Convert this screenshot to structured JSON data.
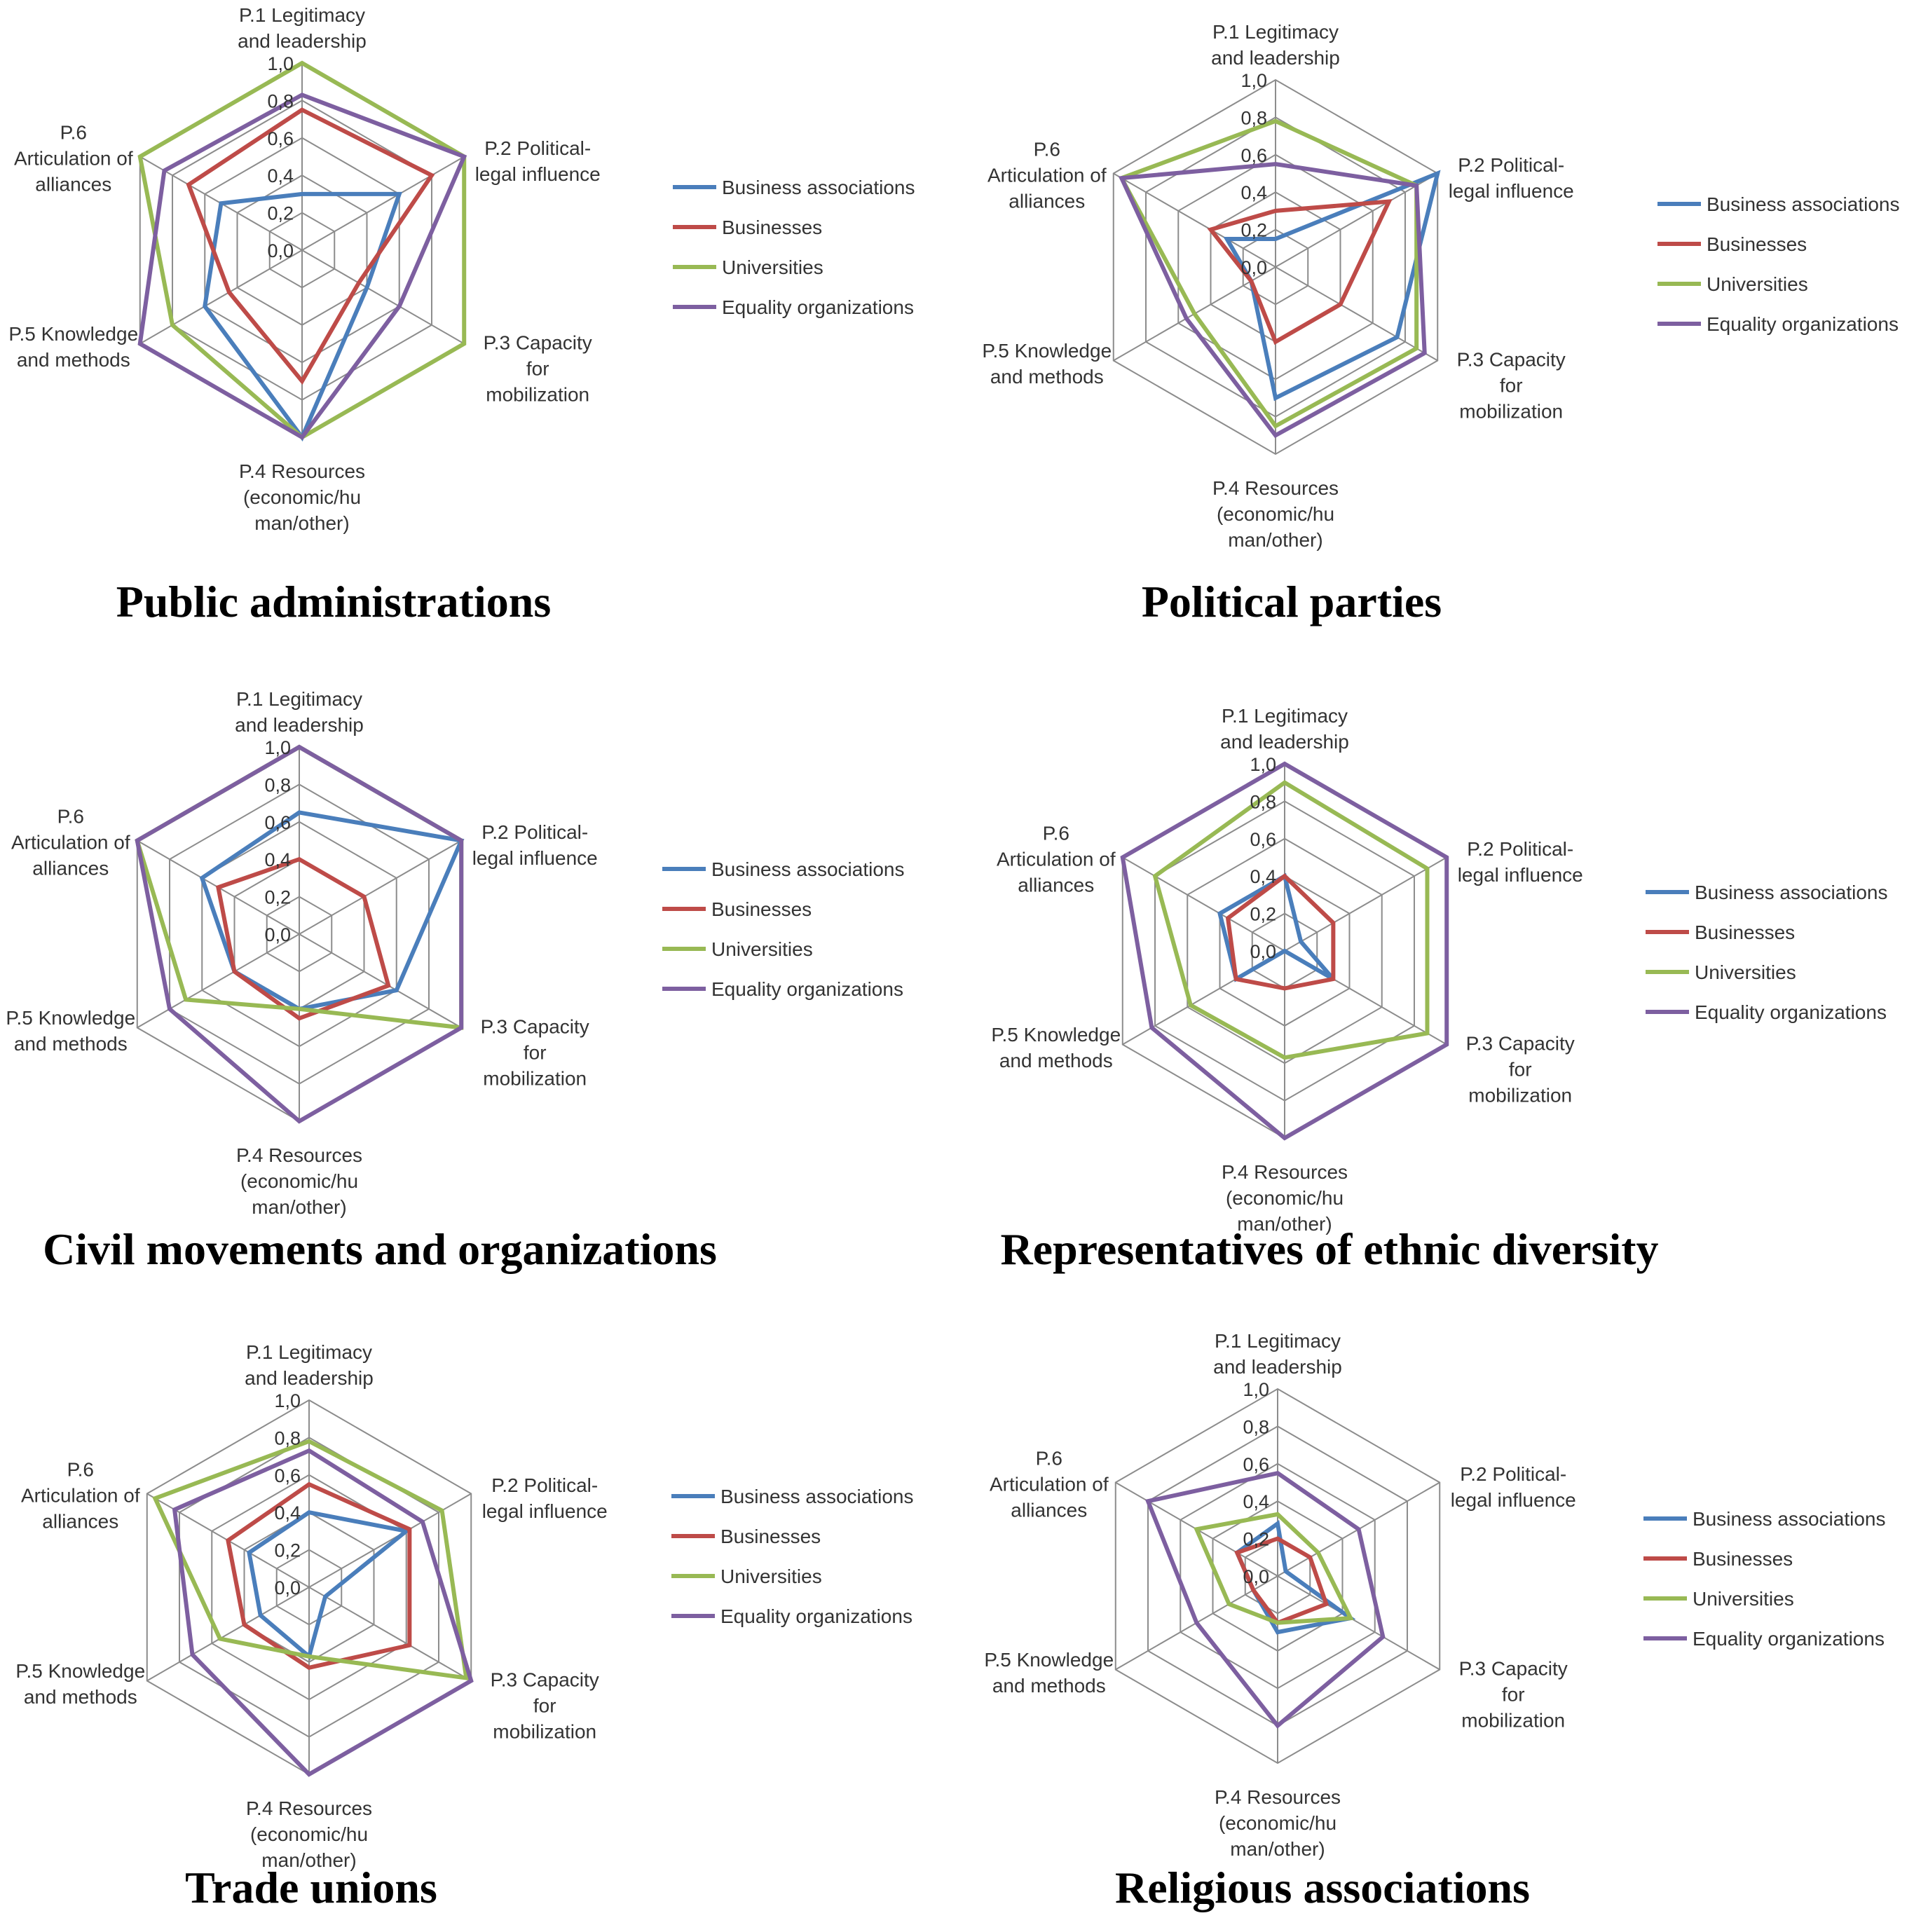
{
  "axes": [
    [
      "P.1 Legitimacy",
      "and leadership"
    ],
    [
      "P.2 Political-",
      "legal influence"
    ],
    [
      "P.3 Capacity",
      "for",
      "mobilization"
    ],
    [
      "P.4 Resources",
      "(economic/hu",
      "man/other)"
    ],
    [
      "P.5 Knowledge",
      "and methods"
    ],
    [
      "P.6",
      "Articulation of",
      "alliances"
    ]
  ],
  "ticks": [
    "0,0",
    "0,2",
    "0,4",
    "0,6",
    "0,8",
    "1,0"
  ],
  "series_names": [
    "Business associations",
    "Businesses",
    "Universities",
    "Equality organizations"
  ],
  "colors": [
    "#4a7ebb",
    "#be4b48",
    "#98b954",
    "#7d5fa0"
  ],
  "chart_data": [
    {
      "type": "radar",
      "title": "Public administrations",
      "rlim": [
        0,
        1
      ],
      "series": [
        {
          "name": "Business associations",
          "values": [
            0.3,
            0.6,
            0.4,
            1.0,
            0.6,
            0.5
          ]
        },
        {
          "name": "Businesses",
          "values": [
            0.75,
            0.8,
            0.35,
            0.7,
            0.45,
            0.7
          ]
        },
        {
          "name": "Universities",
          "values": [
            1.0,
            1.0,
            1.0,
            1.0,
            0.8,
            1.0
          ]
        },
        {
          "name": "Equality organizations",
          "values": [
            0.83,
            1.0,
            0.6,
            1.0,
            1.0,
            0.85
          ]
        }
      ]
    },
    {
      "type": "radar",
      "title": "Political parties",
      "rlim": [
        0,
        1
      ],
      "series": [
        {
          "name": "Business associations",
          "values": [
            0.15,
            1.0,
            0.75,
            0.7,
            0.15,
            0.3
          ]
        },
        {
          "name": "Businesses",
          "values": [
            0.3,
            0.7,
            0.4,
            0.4,
            0.15,
            0.4
          ]
        },
        {
          "name": "Universities",
          "values": [
            0.78,
            0.87,
            0.87,
            0.85,
            0.5,
            0.95
          ]
        },
        {
          "name": "Equality organizations",
          "values": [
            0.55,
            0.87,
            0.92,
            0.9,
            0.55,
            0.95
          ]
        }
      ]
    },
    {
      "type": "radar",
      "title": "Civil movements and organizations",
      "rlim": [
        0,
        1
      ],
      "series": [
        {
          "name": "Business associations",
          "values": [
            0.65,
            1.0,
            0.6,
            0.4,
            0.4,
            0.6
          ]
        },
        {
          "name": "Businesses",
          "values": [
            0.4,
            0.4,
            0.55,
            0.45,
            0.4,
            0.5
          ]
        },
        {
          "name": "Universities",
          "values": [
            1.0,
            1.0,
            1.0,
            0.4,
            0.7,
            1.0
          ]
        },
        {
          "name": "Equality organizations",
          "values": [
            1.0,
            1.0,
            1.0,
            1.0,
            0.8,
            1.0
          ]
        }
      ]
    },
    {
      "type": "radar",
      "title": "Representatives of ethnic diversity",
      "rlim": [
        0,
        1
      ],
      "series": [
        {
          "name": "Business associations",
          "values": [
            0.4,
            0.1,
            0.3,
            0.0,
            0.3,
            0.4
          ]
        },
        {
          "name": "Businesses",
          "values": [
            0.4,
            0.3,
            0.3,
            0.2,
            0.3,
            0.35
          ]
        },
        {
          "name": "Universities",
          "values": [
            0.9,
            0.88,
            0.88,
            0.57,
            0.58,
            0.8
          ]
        },
        {
          "name": "Equality organizations",
          "values": [
            1.0,
            1.0,
            1.0,
            1.0,
            0.82,
            1.0
          ]
        }
      ]
    },
    {
      "type": "radar",
      "title": "Trade unions",
      "rlim": [
        0,
        1
      ],
      "series": [
        {
          "name": "Business associations",
          "values": [
            0.4,
            0.6,
            0.1,
            0.37,
            0.3,
            0.37
          ]
        },
        {
          "name": "Businesses",
          "values": [
            0.55,
            0.62,
            0.62,
            0.43,
            0.4,
            0.5
          ]
        },
        {
          "name": "Universities",
          "values": [
            0.78,
            0.82,
            0.97,
            0.37,
            0.55,
            0.95
          ]
        },
        {
          "name": "Equality organizations",
          "values": [
            0.73,
            0.7,
            1.0,
            1.0,
            0.72,
            0.83
          ]
        }
      ]
    },
    {
      "type": "radar",
      "title": "Religious associations",
      "rlim": [
        0,
        1
      ],
      "series": [
        {
          "name": "Business associations",
          "values": [
            0.28,
            0.05,
            0.45,
            0.3,
            0.15,
            0.25
          ]
        },
        {
          "name": "Businesses",
          "values": [
            0.2,
            0.2,
            0.3,
            0.25,
            0.15,
            0.25
          ]
        },
        {
          "name": "Universities",
          "values": [
            0.33,
            0.25,
            0.45,
            0.25,
            0.3,
            0.5
          ]
        },
        {
          "name": "Equality organizations",
          "values": [
            0.55,
            0.5,
            0.65,
            0.8,
            0.5,
            0.8
          ]
        }
      ]
    }
  ]
}
